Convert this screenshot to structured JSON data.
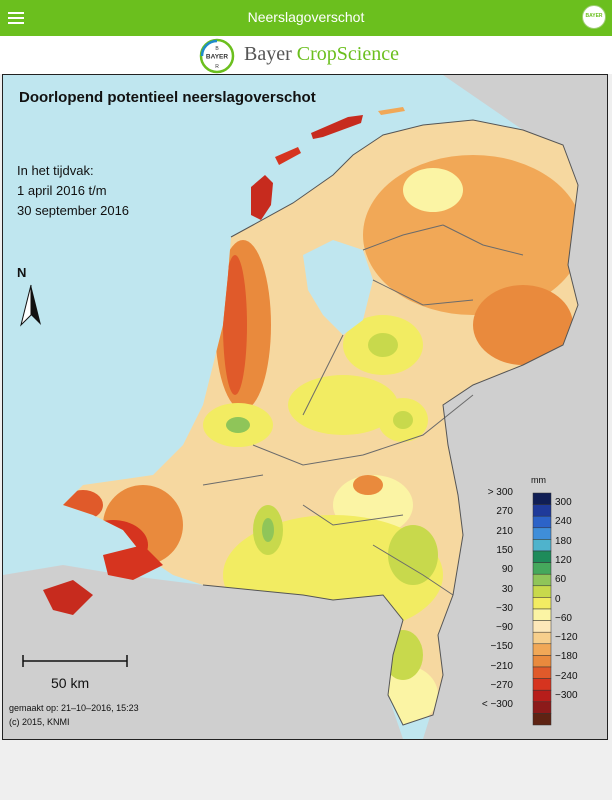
{
  "header": {
    "title": "Neerslagoverschot",
    "bayer_badge": "BAYER"
  },
  "brand": {
    "name_part1": "Bayer",
    "name_part2": "CropScience",
    "logo_text": "BAYER"
  },
  "map": {
    "title": "Doorlopend potentieel neerslagoverschot",
    "period_line1": "In het tijdvak:",
    "period_line2": "1 april 2016 t/m",
    "period_line3": "30 september 2016",
    "north_label": "N",
    "scale_label": "50 km",
    "made_on": "gemaakt op: 21–10–2016, 15:23",
    "copyright": "(c) 2015, KNMI",
    "colors": {
      "sea": "#bfe6ef",
      "land_outside": "#cfcfcf",
      "base_land": "#f6d8a0",
      "border_line": "#6b6b6b"
    }
  },
  "legend": {
    "unit": "mm",
    "left_labels": [
      "> 300",
      "270",
      "210",
      "150",
      "90",
      "30",
      "−30",
      "−90",
      "−150",
      "−210",
      "−270",
      "< −300"
    ],
    "right_labels": [
      "300",
      "240",
      "180",
      "120",
      "60",
      "0",
      "−60",
      "−120",
      "−180",
      "−240",
      "−300"
    ],
    "colors": [
      "#101e55",
      "#1f3a9a",
      "#2c63c8",
      "#3f8ed9",
      "#4fb3cc",
      "#1e8b5a",
      "#45a85c",
      "#8fc559",
      "#c8d94c",
      "#f2ec62",
      "#fbf4a4",
      "#fde8b9",
      "#f7cf8c",
      "#f1a857",
      "#e98a3d",
      "#e05a2a",
      "#d6341f",
      "#b71d1a",
      "#8c1a1a",
      "#5e2313"
    ]
  }
}
